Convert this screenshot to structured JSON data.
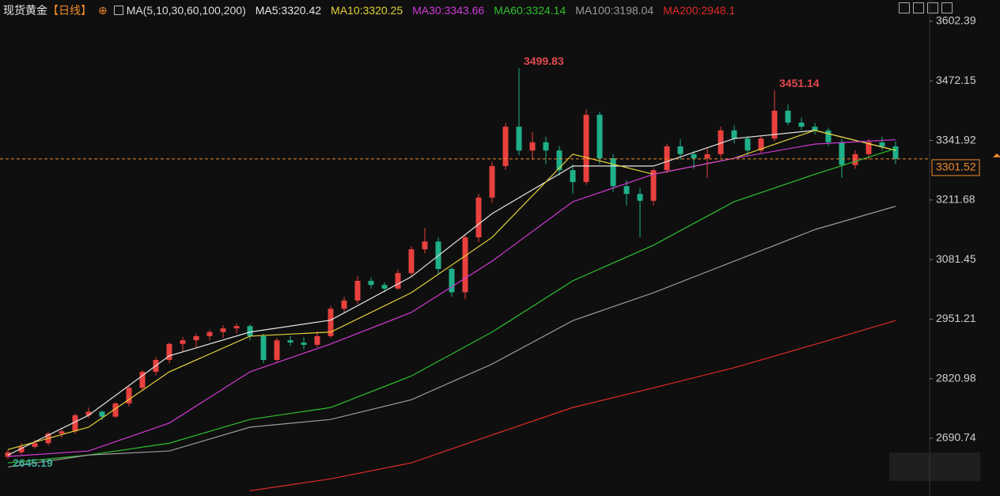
{
  "chart_data": {
    "type": "candlestick",
    "title": "现货黄金",
    "period": "【日线】",
    "indicator": "MA(5,10,30,60,100,200)",
    "up_color": "#e8413e",
    "down_color": "#1fb08a",
    "ylim": [
      2564.5,
      3611
    ],
    "yticks": [
      3602.39,
      3472.15,
      3341.92,
      3211.68,
      3081.45,
      2951.21,
      2820.98,
      2690.74
    ],
    "grid": false,
    "last_price": 3301.52,
    "annotations": [
      3499.83,
      3451.14,
      2645.19
    ],
    "open": [
      2650,
      2660,
      2672,
      2680,
      2701,
      2706,
      2741,
      2749,
      2738,
      2767,
      2801,
      2836,
      2862,
      2897,
      2905,
      2914,
      2923,
      2931,
      2936,
      2914,
      2862,
      2905,
      2900,
      2895,
      2914,
      2974,
      2992,
      3035,
      3026,
      3018,
      3052,
      3104,
      3121,
      3061,
      3010,
      3130,
      3217,
      3286,
      3372,
      3320,
      3338,
      3320,
      3277,
      3251,
      3398,
      3303,
      3242,
      3225,
      3210,
      3277,
      3329,
      3312,
      3303,
      3312,
      3364,
      3346,
      3320,
      3346,
      3407,
      3381,
      3372,
      3364,
      3338,
      3288,
      3312,
      3338,
      3329
    ],
    "high": [
      2665,
      2680,
      2688,
      2705,
      2712,
      2745,
      2758,
      2752,
      2770,
      2805,
      2840,
      2868,
      2900,
      2912,
      2920,
      2928,
      2938,
      2942,
      2940,
      2920,
      2910,
      2915,
      2912,
      2925,
      2980,
      3000,
      3045,
      3042,
      3032,
      3060,
      3110,
      3150,
      3130,
      3065,
      3135,
      3225,
      3295,
      3380,
      3499.83,
      3360,
      3350,
      3330,
      3290,
      3410,
      3405,
      3312,
      3255,
      3238,
      3280,
      3335,
      3345,
      3320,
      3325,
      3372,
      3375,
      3352,
      3352,
      3451.14,
      3420,
      3392,
      3380,
      3370,
      3345,
      3320,
      3345,
      3350,
      3340
    ],
    "low": [
      2645.19,
      2655,
      2668,
      2675,
      2692,
      2700,
      2735,
      2730,
      2735,
      2760,
      2795,
      2828,
      2855,
      2880,
      2890,
      2905,
      2910,
      2920,
      2905,
      2855,
      2855,
      2893,
      2885,
      2890,
      2910,
      2965,
      2985,
      3018,
      3010,
      3015,
      3045,
      3095,
      3050,
      3000,
      2995,
      3120,
      3205,
      3278,
      3310,
      3300,
      3290,
      3265,
      3225,
      3245,
      3290,
      3230,
      3200,
      3130,
      3200,
      3270,
      3300,
      3280,
      3260,
      3305,
      3335,
      3310,
      3315,
      3340,
      3375,
      3365,
      3355,
      3330,
      3260,
      3280,
      3300,
      3320,
      3290
    ],
    "close": [
      2660,
      2672,
      2680,
      2701,
      2706,
      2741,
      2749,
      2738,
      2767,
      2801,
      2836,
      2862,
      2897,
      2905,
      2914,
      2923,
      2931,
      2936,
      2914,
      2862,
      2905,
      2900,
      2895,
      2914,
      2974,
      2992,
      3035,
      3026,
      3018,
      3052,
      3104,
      3121,
      3061,
      3010,
      3130,
      3217,
      3286,
      3372,
      3320,
      3338,
      3320,
      3277,
      3251,
      3398,
      3303,
      3242,
      3225,
      3210,
      3277,
      3329,
      3312,
      3303,
      3312,
      3364,
      3346,
      3320,
      3346,
      3407,
      3381,
      3372,
      3364,
      3338,
      3288,
      3312,
      3338,
      3329,
      3301.52
    ],
    "series": [
      {
        "name": "MA5",
        "label": "MA5:3320.42",
        "color": "#e6e6e6",
        "x": [
          0,
          6,
          12,
          18,
          24,
          30,
          36,
          42,
          48,
          54,
          60,
          66
        ],
        "values": [
          2654,
          2741,
          2871,
          2923,
          2949,
          3044,
          3182,
          3286,
          3286,
          3346,
          3364,
          3320.42
        ]
      },
      {
        "name": "MA10",
        "label": "MA10:3320.25",
        "color": "#e3d23a",
        "x": [
          0,
          6,
          12,
          18,
          24,
          30,
          36,
          42,
          48,
          54,
          60,
          66
        ],
        "values": [
          2666,
          2715,
          2836,
          2914,
          2923,
          3009,
          3130,
          3312,
          3268,
          3303,
          3364,
          3320.25
        ]
      },
      {
        "name": "MA30",
        "label": "MA30:3343.66",
        "color": "#d23ad8",
        "x": [
          0,
          6,
          12,
          18,
          24,
          30,
          36,
          42,
          48,
          54,
          60,
          66
        ],
        "values": [
          2651,
          2663,
          2724,
          2836,
          2897,
          2966,
          3078,
          3208,
          3268,
          3303,
          3334,
          3343.66
        ]
      },
      {
        "name": "MA60",
        "label": "MA60:3324.14",
        "color": "#2fc02f",
        "x": [
          0,
          6,
          12,
          18,
          24,
          30,
          36,
          42,
          48,
          54,
          60,
          66
        ],
        "values": [
          2637,
          2654,
          2680,
          2732,
          2758,
          2827,
          2923,
          3035,
          3113,
          3208,
          3268,
          3324.14
        ]
      },
      {
        "name": "MA100",
        "label": "MA100:3198.04",
        "color": "#9a9a9a",
        "x": [
          0,
          6,
          12,
          18,
          24,
          30,
          36,
          42,
          48,
          54,
          60,
          66
        ],
        "values": [
          2628,
          2654,
          2663,
          2715,
          2732,
          2775,
          2853,
          2948,
          3009,
          3078,
          3147,
          3198.04
        ]
      },
      {
        "name": "MA200",
        "label": "MA200:2948.1",
        "color": "#e02a2a",
        "x": [
          18,
          24,
          30,
          36,
          42,
          48,
          54,
          60,
          66
        ],
        "values": [
          2576,
          2602,
          2637,
          2698,
          2758,
          2801,
          2845,
          2896,
          2948.1
        ]
      }
    ]
  }
}
